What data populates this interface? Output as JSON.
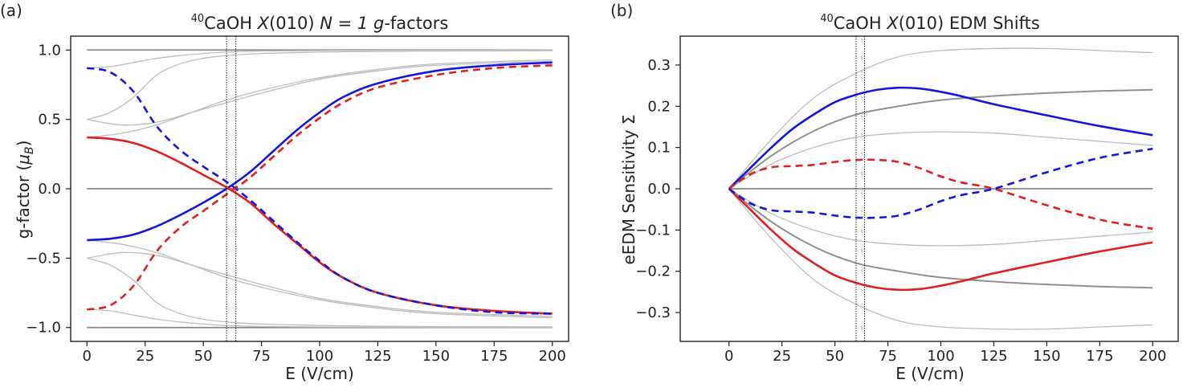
{
  "chart_data": [
    {
      "type": "line",
      "panel_label": "(a)",
      "title": {
        "superscript": "40",
        "molecule": "CaOH",
        "state_letter": "X",
        "state_rest": "(010)",
        "tail_plain": "N = 1 ",
        "tail_italic": "g",
        "tail_end": "-factors"
      },
      "xlabel": "E (V/cm)",
      "ylabel": {
        "main": "g-factor (",
        "mu": "μ",
        "sub": "B",
        "close": ")"
      },
      "xlim": [
        -7,
        207
      ],
      "ylim": [
        -1.1,
        1.1
      ],
      "xticks": [
        0,
        25,
        50,
        75,
        100,
        125,
        150,
        175,
        200
      ],
      "xtick_labels": [
        "0",
        "25",
        "50",
        "75",
        "100",
        "125",
        "150",
        "175",
        "200"
      ],
      "yticks": [
        -1.0,
        -0.5,
        0.0,
        0.5,
        1.0
      ],
      "ytick_labels": [
        "−1.0",
        "−0.5",
        "0.0",
        "0.5",
        "1.0"
      ],
      "vlines": [
        60,
        64
      ],
      "series": [
        {
          "name": "flat-upper",
          "color": "#888888",
          "width": 1.8,
          "dash": "",
          "x": [
            0,
            200
          ],
          "y": [
            1.0,
            1.0
          ]
        },
        {
          "name": "flat-zero",
          "color": "#888888",
          "width": 1.8,
          "dash": "",
          "x": [
            0,
            200
          ],
          "y": [
            0.0,
            0.0
          ]
        },
        {
          "name": "flat-lower",
          "color": "#888888",
          "width": 1.8,
          "dash": "",
          "x": [
            0,
            200
          ],
          "y": [
            -1.0,
            -1.0
          ]
        },
        {
          "name": "gray-up-a",
          "color": "#bdbdbd",
          "width": 1.3,
          "dash": "",
          "x": [
            0,
            10,
            20,
            30,
            40,
            50,
            60,
            75,
            100,
            125,
            150,
            200
          ],
          "y": [
            0.87,
            0.88,
            0.91,
            0.94,
            0.96,
            0.975,
            0.985,
            0.992,
            0.996,
            0.998,
            0.999,
            1.0
          ]
        },
        {
          "name": "gray-up-b",
          "color": "#bdbdbd",
          "width": 1.3,
          "dash": "",
          "x": [
            0,
            10,
            20,
            30,
            40,
            50,
            60,
            75,
            100,
            125,
            150,
            200
          ],
          "y": [
            0.5,
            0.55,
            0.66,
            0.82,
            0.9,
            0.94,
            0.96,
            0.975,
            0.985,
            0.99,
            0.993,
            0.995
          ]
        },
        {
          "name": "gray-up-c",
          "color": "#bdbdbd",
          "width": 1.3,
          "dash": "",
          "x": [
            0,
            15,
            30,
            45,
            60,
            75,
            100,
            125,
            150,
            200
          ],
          "y": [
            0.5,
            0.46,
            0.48,
            0.55,
            0.62,
            0.69,
            0.79,
            0.85,
            0.89,
            0.92
          ]
        },
        {
          "name": "gray-up-d",
          "color": "#bdbdbd",
          "width": 1.3,
          "dash": "",
          "x": [
            0,
            15,
            30,
            45,
            60,
            75,
            100,
            125,
            150,
            200
          ],
          "y": [
            0.37,
            0.4,
            0.46,
            0.55,
            0.64,
            0.71,
            0.8,
            0.86,
            0.9,
            0.93
          ]
        },
        {
          "name": "gray-dn-a",
          "color": "#bdbdbd",
          "width": 1.3,
          "dash": "",
          "x": [
            0,
            10,
            20,
            30,
            40,
            50,
            60,
            75,
            100,
            125,
            150,
            200
          ],
          "y": [
            -0.87,
            -0.88,
            -0.91,
            -0.94,
            -0.96,
            -0.975,
            -0.985,
            -0.992,
            -0.996,
            -0.998,
            -0.999,
            -1.0
          ]
        },
        {
          "name": "gray-dn-b",
          "color": "#bdbdbd",
          "width": 1.3,
          "dash": "",
          "x": [
            0,
            10,
            20,
            30,
            40,
            50,
            60,
            75,
            100,
            125,
            150,
            200
          ],
          "y": [
            -0.5,
            -0.55,
            -0.66,
            -0.82,
            -0.9,
            -0.94,
            -0.96,
            -0.975,
            -0.985,
            -0.99,
            -0.993,
            -0.995
          ]
        },
        {
          "name": "gray-dn-c",
          "color": "#bdbdbd",
          "width": 1.3,
          "dash": "",
          "x": [
            0,
            15,
            30,
            45,
            60,
            75,
            100,
            125,
            150,
            200
          ],
          "y": [
            -0.5,
            -0.46,
            -0.48,
            -0.55,
            -0.62,
            -0.69,
            -0.79,
            -0.85,
            -0.89,
            -0.92
          ]
        },
        {
          "name": "gray-dn-d",
          "color": "#bdbdbd",
          "width": 1.3,
          "dash": "",
          "x": [
            0,
            15,
            30,
            45,
            60,
            75,
            100,
            125,
            150,
            200
          ],
          "y": [
            -0.37,
            -0.4,
            -0.46,
            -0.55,
            -0.64,
            -0.71,
            -0.8,
            -0.86,
            -0.9,
            -0.93
          ]
        },
        {
          "name": "blue-solid",
          "color": "#1515e0",
          "width": 2.6,
          "dash": "",
          "x": [
            0,
            10,
            20,
            30,
            40,
            50,
            60,
            70,
            80,
            90,
            100,
            110,
            125,
            150,
            175,
            200
          ],
          "y": [
            -0.37,
            -0.36,
            -0.33,
            -0.27,
            -0.19,
            -0.1,
            0.0,
            0.12,
            0.27,
            0.42,
            0.55,
            0.66,
            0.76,
            0.85,
            0.89,
            0.91
          ]
        },
        {
          "name": "red-solid",
          "color": "#e02020",
          "width": 2.6,
          "dash": "",
          "x": [
            0,
            10,
            20,
            30,
            40,
            50,
            60,
            70,
            80,
            90,
            100,
            110,
            125,
            150,
            175,
            200
          ],
          "y": [
            0.37,
            0.36,
            0.33,
            0.27,
            0.19,
            0.1,
            0.01,
            -0.1,
            -0.25,
            -0.39,
            -0.53,
            -0.64,
            -0.75,
            -0.84,
            -0.88,
            -0.9
          ]
        },
        {
          "name": "blue-dashed",
          "color": "#1515e0",
          "width": 2.6,
          "dash": "9,6",
          "x": [
            0,
            10,
            20,
            30,
            40,
            50,
            60,
            70,
            80,
            90,
            100,
            110,
            125,
            150,
            175,
            200
          ],
          "y": [
            0.87,
            0.84,
            0.7,
            0.45,
            0.28,
            0.16,
            0.05,
            -0.08,
            -0.23,
            -0.38,
            -0.52,
            -0.64,
            -0.75,
            -0.84,
            -0.89,
            -0.9
          ]
        },
        {
          "name": "red-dashed",
          "color": "#e02020",
          "width": 2.6,
          "dash": "9,6",
          "x": [
            0,
            10,
            20,
            30,
            40,
            50,
            60,
            70,
            80,
            90,
            100,
            110,
            125,
            150,
            175,
            200
          ],
          "y": [
            -0.87,
            -0.84,
            -0.7,
            -0.45,
            -0.28,
            -0.16,
            -0.04,
            0.08,
            0.23,
            0.38,
            0.51,
            0.62,
            0.73,
            0.82,
            0.87,
            0.89
          ]
        }
      ]
    },
    {
      "type": "line",
      "panel_label": "(b)",
      "title": {
        "superscript": "40",
        "molecule": "CaOH",
        "state_letter": "X",
        "state_rest": "(010)",
        "tail_plain": "EDM Shifts",
        "tail_italic": "",
        "tail_end": ""
      },
      "xlabel": "E (V/cm)",
      "ylabel": {
        "main": "eEDM Sensitivity Σ",
        "mu": "",
        "sub": "",
        "close": ""
      },
      "xlim": [
        -23,
        212
      ],
      "ylim": [
        -0.37,
        0.37
      ],
      "xticks": [
        0,
        25,
        50,
        75,
        100,
        125,
        150,
        175,
        200
      ],
      "xtick_labels": [
        "0",
        "25",
        "50",
        "75",
        "100",
        "125",
        "150",
        "175",
        "200"
      ],
      "yticks": [
        -0.3,
        -0.2,
        -0.1,
        0.0,
        0.1,
        0.2,
        0.3
      ],
      "ytick_labels": [
        "−0.3",
        "−0.2",
        "−0.1",
        "0.0",
        "0.1",
        "0.2",
        "0.3"
      ],
      "vlines": [
        60,
        64
      ],
      "series": [
        {
          "name": "flat-zero",
          "color": "#888888",
          "width": 1.8,
          "dash": "",
          "x": [
            0,
            200
          ],
          "y": [
            0.0,
            0.0
          ]
        },
        {
          "name": "gray-top",
          "color": "#bdbdbd",
          "width": 1.3,
          "dash": "",
          "x": [
            0,
            20,
            40,
            60,
            80,
            100,
            125,
            150,
            175,
            200
          ],
          "y": [
            0.0,
            0.12,
            0.22,
            0.28,
            0.32,
            0.335,
            0.34,
            0.34,
            0.335,
            0.33
          ]
        },
        {
          "name": "gray-mid-up",
          "color": "#bdbdbd",
          "width": 1.3,
          "dash": "",
          "x": [
            0,
            20,
            40,
            60,
            80,
            100,
            125,
            150,
            175,
            200
          ],
          "y": [
            0.0,
            0.06,
            0.1,
            0.125,
            0.135,
            0.138,
            0.135,
            0.125,
            0.115,
            0.105
          ]
        },
        {
          "name": "gray-thick-up",
          "color": "#909090",
          "width": 2.0,
          "dash": "",
          "x": [
            0,
            20,
            40,
            60,
            80,
            100,
            125,
            150,
            175,
            200
          ],
          "y": [
            0.0,
            0.08,
            0.14,
            0.18,
            0.2,
            0.215,
            0.225,
            0.232,
            0.237,
            0.24
          ]
        },
        {
          "name": "gray-bottom",
          "color": "#bdbdbd",
          "width": 1.3,
          "dash": "",
          "x": [
            0,
            20,
            40,
            60,
            80,
            100,
            125,
            150,
            175,
            200
          ],
          "y": [
            0.0,
            -0.12,
            -0.22,
            -0.28,
            -0.32,
            -0.335,
            -0.34,
            -0.34,
            -0.335,
            -0.33
          ]
        },
        {
          "name": "gray-mid-dn",
          "color": "#bdbdbd",
          "width": 1.3,
          "dash": "",
          "x": [
            0,
            20,
            40,
            60,
            80,
            100,
            125,
            150,
            175,
            200
          ],
          "y": [
            0.0,
            -0.06,
            -0.1,
            -0.125,
            -0.135,
            -0.138,
            -0.135,
            -0.125,
            -0.115,
            -0.105
          ]
        },
        {
          "name": "gray-thick-dn",
          "color": "#909090",
          "width": 2.0,
          "dash": "",
          "x": [
            0,
            20,
            40,
            60,
            80,
            100,
            125,
            150,
            175,
            200
          ],
          "y": [
            0.0,
            -0.08,
            -0.14,
            -0.18,
            -0.2,
            -0.215,
            -0.225,
            -0.232,
            -0.237,
            -0.24
          ]
        },
        {
          "name": "blue-solid",
          "color": "#1515e0",
          "width": 2.6,
          "dash": "",
          "x": [
            0,
            10,
            20,
            30,
            40,
            50,
            60,
            70,
            80,
            90,
            100,
            110,
            125,
            150,
            175,
            200
          ],
          "y": [
            0.0,
            0.05,
            0.1,
            0.145,
            0.18,
            0.21,
            0.228,
            0.24,
            0.245,
            0.243,
            0.235,
            0.224,
            0.205,
            0.178,
            0.152,
            0.13
          ]
        },
        {
          "name": "red-solid",
          "color": "#e02020",
          "width": 2.6,
          "dash": "",
          "x": [
            0,
            10,
            20,
            30,
            40,
            50,
            60,
            70,
            80,
            90,
            100,
            110,
            125,
            150,
            175,
            200
          ],
          "y": [
            0.0,
            -0.05,
            -0.1,
            -0.145,
            -0.18,
            -0.21,
            -0.228,
            -0.24,
            -0.245,
            -0.243,
            -0.235,
            -0.224,
            -0.205,
            -0.178,
            -0.152,
            -0.13
          ]
        },
        {
          "name": "red-dashed",
          "color": "#e02020",
          "width": 2.6,
          "dash": "9,6",
          "x": [
            0,
            10,
            20,
            30,
            40,
            50,
            60,
            70,
            80,
            90,
            100,
            110,
            125,
            150,
            175,
            200
          ],
          "y": [
            0.0,
            0.035,
            0.052,
            0.055,
            0.058,
            0.065,
            0.07,
            0.07,
            0.065,
            0.05,
            0.03,
            0.015,
            0.0,
            -0.04,
            -0.075,
            -0.097
          ]
        },
        {
          "name": "blue-dashed",
          "color": "#1515e0",
          "width": 2.6,
          "dash": "9,6",
          "x": [
            0,
            10,
            20,
            30,
            40,
            50,
            60,
            70,
            80,
            90,
            100,
            110,
            125,
            150,
            175,
            200
          ],
          "y": [
            0.0,
            -0.035,
            -0.052,
            -0.055,
            -0.058,
            -0.065,
            -0.07,
            -0.07,
            -0.065,
            -0.05,
            -0.03,
            -0.015,
            0.0,
            0.04,
            0.075,
            0.097
          ]
        }
      ]
    }
  ]
}
